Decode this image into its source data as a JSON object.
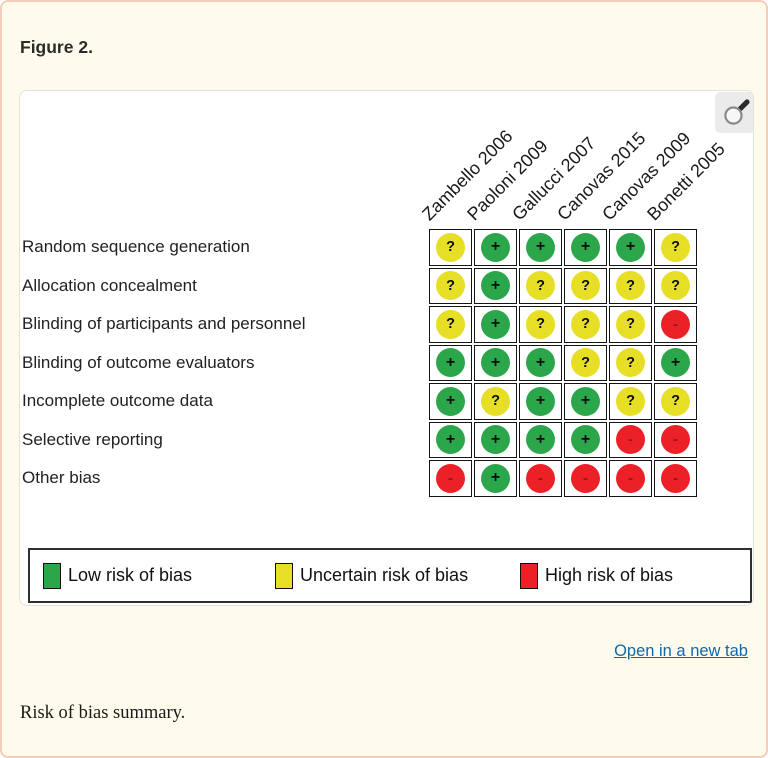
{
  "page": {
    "figure_label": "Figure 2.",
    "open_link": "Open in a new tab",
    "caption": "Risk of bias summary."
  },
  "colors": {
    "low": "#2CA64B",
    "uncertain": "#E6DF25",
    "high": "#EC2027",
    "page_bg": "#FFFBEC",
    "card_border": "#F4CEB8",
    "link": "#0F68A9",
    "grid_line": "#141414"
  },
  "icons": {
    "magnifier": "magnifier-icon"
  },
  "chart_data": {
    "type": "heatmap",
    "title": "Risk of bias summary",
    "columns": [
      "Zambello 2006",
      "Paoloni 2009",
      "Gallucci 2007",
      "Canovas 2015",
      "Canovas 2009",
      "Bonetti 2005"
    ],
    "rows": [
      "Random sequence generation",
      "Allocation concealment",
      "Blinding of participants and personnel",
      "Blinding of outcome evaluators",
      "Incomplete outcome data",
      "Selective reporting",
      "Other bias"
    ],
    "cells": [
      [
        "uncertain",
        "low",
        "low",
        "low",
        "low",
        "uncertain"
      ],
      [
        "uncertain",
        "low",
        "uncertain",
        "uncertain",
        "uncertain",
        "uncertain"
      ],
      [
        "uncertain",
        "low",
        "uncertain",
        "uncertain",
        "uncertain",
        "high"
      ],
      [
        "low",
        "low",
        "low",
        "uncertain",
        "uncertain",
        "low"
      ],
      [
        "low",
        "uncertain",
        "low",
        "low",
        "uncertain",
        "uncertain"
      ],
      [
        "low",
        "low",
        "low",
        "low",
        "high",
        "high"
      ],
      [
        "high",
        "low",
        "high",
        "high",
        "high",
        "high"
      ]
    ],
    "symbols": {
      "low": "+",
      "uncertain": "?",
      "high": "-"
    },
    "legend": [
      {
        "key": "low",
        "label": "Low risk of bias"
      },
      {
        "key": "uncertain",
        "label": "Uncertain risk of bias"
      },
      {
        "key": "high",
        "label": "High risk of bias"
      }
    ],
    "legend_position": "bottom"
  }
}
